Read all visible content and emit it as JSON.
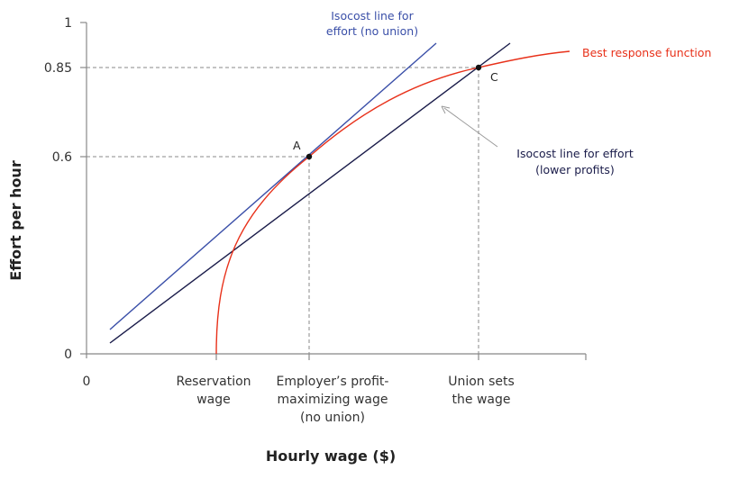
{
  "colors": {
    "best_response": "#e8311a",
    "isocost_no_union": "#3a4fa8",
    "isocost_lower": "#1a1c4a",
    "guide": "#888888",
    "axis": "#888888"
  },
  "axes": {
    "y_title": "Effort per hour",
    "x_title": "Hourly wage ($)",
    "y_ticks": [
      "0",
      "0.6",
      "0.85",
      "1"
    ],
    "x_origin": "0",
    "x_categories": [
      {
        "lines": [
          "Reservation",
          "wage"
        ]
      },
      {
        "lines": [
          "Employer’s profit-",
          "maximizing wage",
          "(no union)"
        ]
      },
      {
        "lines": [
          "Union sets",
          "the wage"
        ]
      }
    ]
  },
  "curves": {
    "isocost_no_union": {
      "lines": [
        "Isocost line for",
        "effort (no union)"
      ]
    },
    "isocost_lower": {
      "lines": [
        "Isocost line for effort",
        "(lower profits)"
      ]
    },
    "best_response": {
      "label": "Best response function"
    }
  },
  "points": [
    {
      "label": "A",
      "effort": 0.6
    },
    {
      "label": "C",
      "effort": 0.85
    }
  ]
}
